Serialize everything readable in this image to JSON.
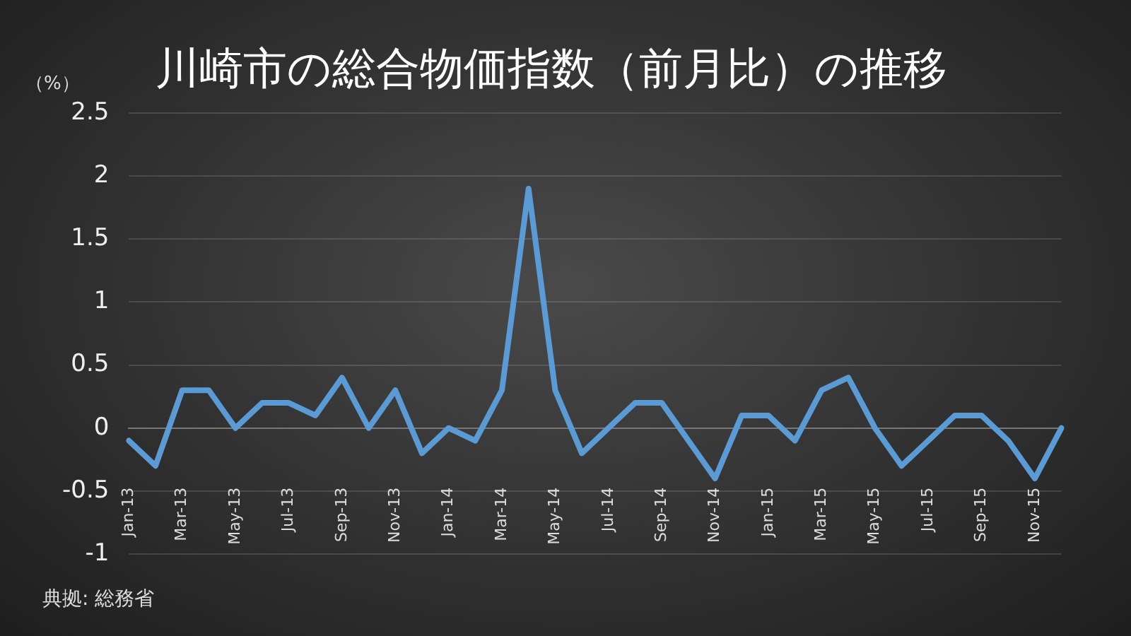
{
  "chart_data": {
    "type": "line",
    "title": "川崎市の総合物価指数（前月比）の推移",
    "ylabel": "（%）",
    "annotations": [
      "典拠: 総務省"
    ],
    "categories": [
      "Jan-13",
      null,
      "Mar-13",
      null,
      "May-13",
      null,
      "Jul-13",
      null,
      "Sep-13",
      null,
      "Nov-13",
      null,
      "Jan-14",
      null,
      "Mar-14",
      null,
      "May-14",
      null,
      "Jul-14",
      null,
      "Sep-14",
      null,
      "Nov-14",
      null,
      "Jan-15",
      null,
      "Mar-15",
      null,
      "May-15",
      null,
      "Jul-15",
      null,
      "Sep-15",
      null,
      "Nov-15",
      null
    ],
    "series": [
      {
        "color": "#5b9bd5",
        "values": [
          -0.1,
          -0.3,
          0.3,
          0.3,
          0.0,
          0.2,
          0.2,
          0.1,
          0.4,
          0.0,
          0.3,
          -0.2,
          0.0,
          -0.1,
          0.3,
          1.9,
          0.3,
          -0.2,
          0.0,
          0.2,
          0.2,
          -0.1,
          -0.4,
          0.1,
          0.1,
          -0.1,
          0.3,
          0.4,
          0.0,
          -0.3,
          -0.1,
          0.1,
          0.1,
          -0.1,
          -0.4,
          0.0
        ]
      }
    ],
    "ylim": [
      -1,
      2.5
    ],
    "yticks": [
      -1,
      -0.5,
      0,
      0.5,
      1,
      1.5,
      2,
      2.5
    ],
    "grid": "y",
    "legend": false,
    "marker": "none",
    "line_style": "solid"
  }
}
